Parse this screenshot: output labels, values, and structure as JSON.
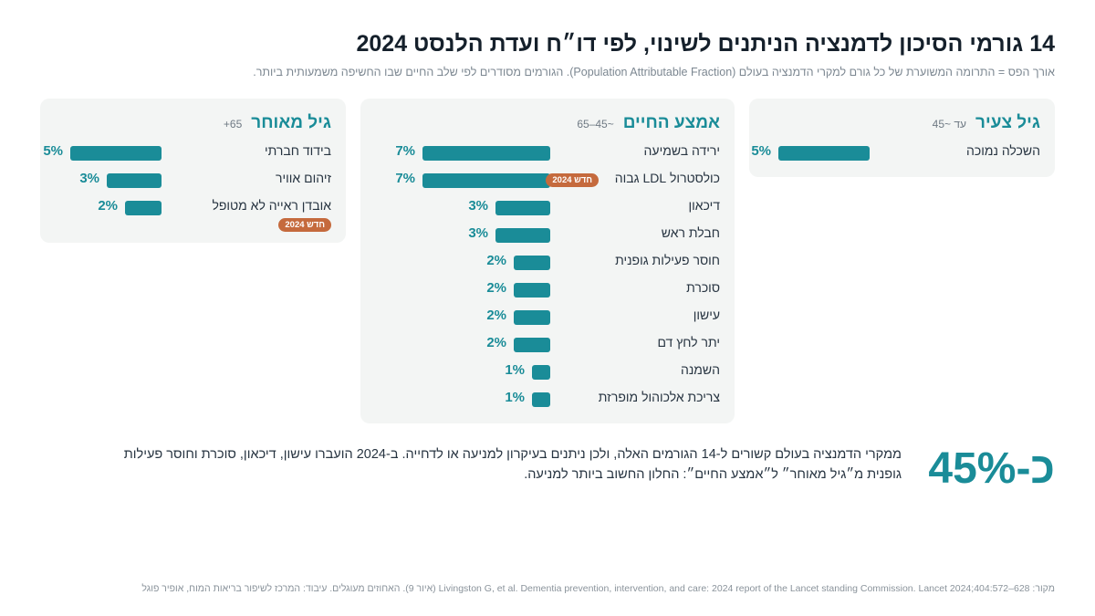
{
  "header": {
    "title": "14 גורמי הסיכון לדמנציה הניתנים לשינוי, לפי דו״ח ועדת הלנסט 2024",
    "subtitle": "אורך הפס = התרומה המשוערת של כל גורם למקרי הדמנציה בעולם (Population Attributable Fraction). הגורמים מסודרים לפי שלב החיים שבו החשיפה משמעותית ביותר."
  },
  "colors": {
    "accent": "#1a8c98",
    "badge": "#c56a3d",
    "panel": "#f3f5f4"
  },
  "chart_data": {
    "type": "bar",
    "orientation": "horizontal",
    "unit": "%",
    "groups": [
      {
        "name": "גיל צעיר",
        "age": "עד ~45",
        "items": [
          {
            "label": "השכלה נמוכה",
            "value": 5,
            "new": false
          }
        ]
      },
      {
        "name": "אמצע החיים",
        "age": "~45–65",
        "items": [
          {
            "label": "ירידה בשמיעה",
            "value": 7,
            "new": false
          },
          {
            "label": "כולסטרול LDL גבוה",
            "value": 7,
            "new": true
          },
          {
            "label": "דיכאון",
            "value": 3,
            "new": false
          },
          {
            "label": "חבלת ראש",
            "value": 3,
            "new": false
          },
          {
            "label": "חוסר פעילות גופנית",
            "value": 2,
            "new": false
          },
          {
            "label": "סוכרת",
            "value": 2,
            "new": false
          },
          {
            "label": "עישון",
            "value": 2,
            "new": false
          },
          {
            "label": "יתר לחץ דם",
            "value": 2,
            "new": false
          },
          {
            "label": "השמנה",
            "value": 1,
            "new": false
          },
          {
            "label": "צריכת אלכוהול מופרזת",
            "value": 1,
            "new": false
          }
        ]
      },
      {
        "name": "גיל מאוחר",
        "age": "65+",
        "items": [
          {
            "label": "בידוד חברתי",
            "value": 5,
            "new": false
          },
          {
            "label": "זיהום אוויר",
            "value": 3,
            "new": false
          },
          {
            "label": "אובדן ראייה לא מטופל",
            "value": 2,
            "new": true
          }
        ]
      }
    ],
    "badge_label": "חדש 2024"
  },
  "summary": {
    "big_number": "כ-45%",
    "text": "ממקרי הדמנציה בעולם קשורים ל-14 הגורמים האלה, ולכן ניתנים בעיקרון למניעה או לדחייה. ב-2024 הועברו עישון, דיכאון, סוכרת וחוסר פעילות גופנית מ״גיל מאוחר״ ל״אמצע החיים״: החלון החשוב ביותר למניעה."
  },
  "source": "מקור: Livingston G, et al. Dementia prevention, intervention, and care: 2024 report of the Lancet standing Commission. Lancet 2024;404:572–628 (איור 9). האחוזים מעוגלים. עיבוד: המרכז לשיפור בריאות המוח, אופיר פוגל"
}
